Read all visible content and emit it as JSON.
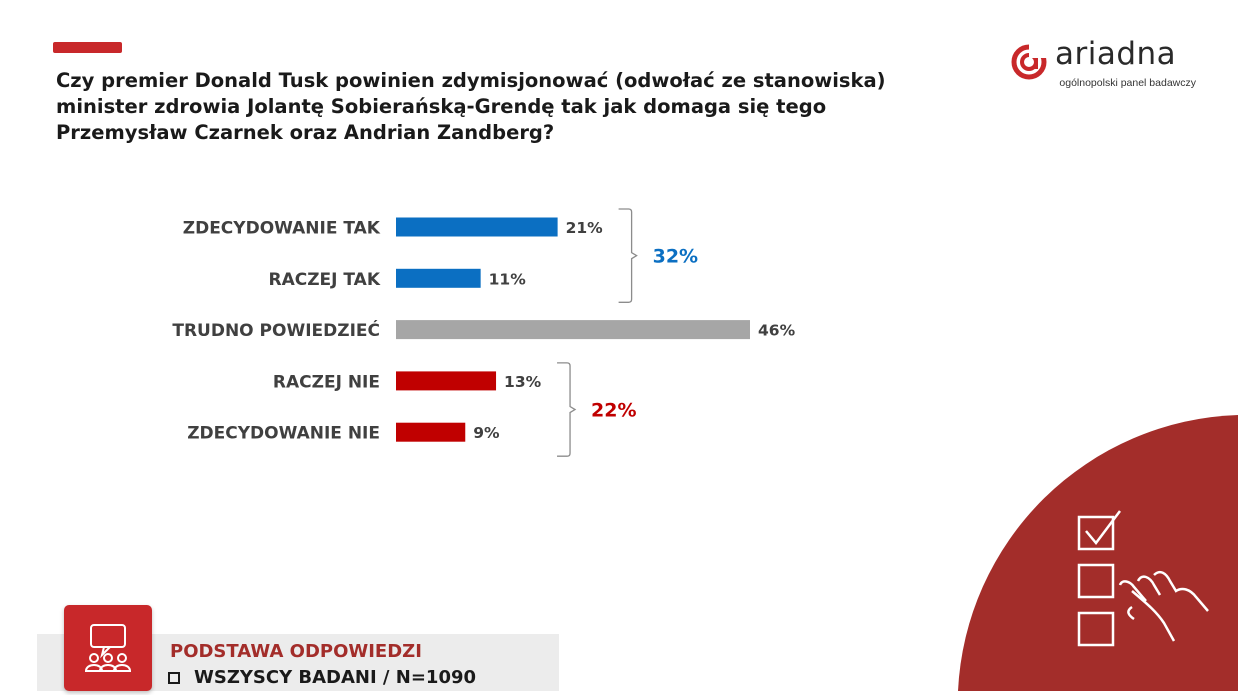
{
  "question": "Czy premier Donald Tusk powinien zdymisjonować (odwołać ze stanowiska) minister zdrowia Jolantę Sobierańską-Grendę tak jak domaga się tego Przemysław Czarnek oraz Andrian Zandberg?",
  "logo": {
    "name": "ariadna",
    "tagline": "ogólnopolski panel badawczy"
  },
  "basis": {
    "title": "PODSTAWA ODPOWIEDZI",
    "value": "WSZYSCY BADANI / N=1090"
  },
  "colors": {
    "yes": "#0b6fc2",
    "neutral": "#a6a6a6",
    "no": "#c00000",
    "brand": "#a32d2a"
  },
  "chart_data": {
    "type": "bar",
    "orientation": "horizontal",
    "categories": [
      "ZDECYDOWANIE TAK",
      "RACZEJ TAK",
      "TRUDNO POWIEDZIEĆ",
      "RACZEJ NIE",
      "ZDECYDOWANIE NIE"
    ],
    "values": [
      21,
      11,
      46,
      13,
      9
    ],
    "value_labels": [
      "21%",
      "11%",
      "46%",
      "13%",
      "9%"
    ],
    "bar_colors": [
      "#0b6fc2",
      "#0b6fc2",
      "#a6a6a6",
      "#c00000",
      "#c00000"
    ],
    "groups": [
      {
        "label": "32%",
        "members": [
          0,
          1
        ],
        "color": "#0b6fc2"
      },
      {
        "label": "22%",
        "members": [
          3,
          4
        ],
        "color": "#c00000"
      }
    ],
    "xlim": [
      0,
      46
    ],
    "grid": false,
    "title": "",
    "xlabel": "",
    "ylabel": ""
  }
}
